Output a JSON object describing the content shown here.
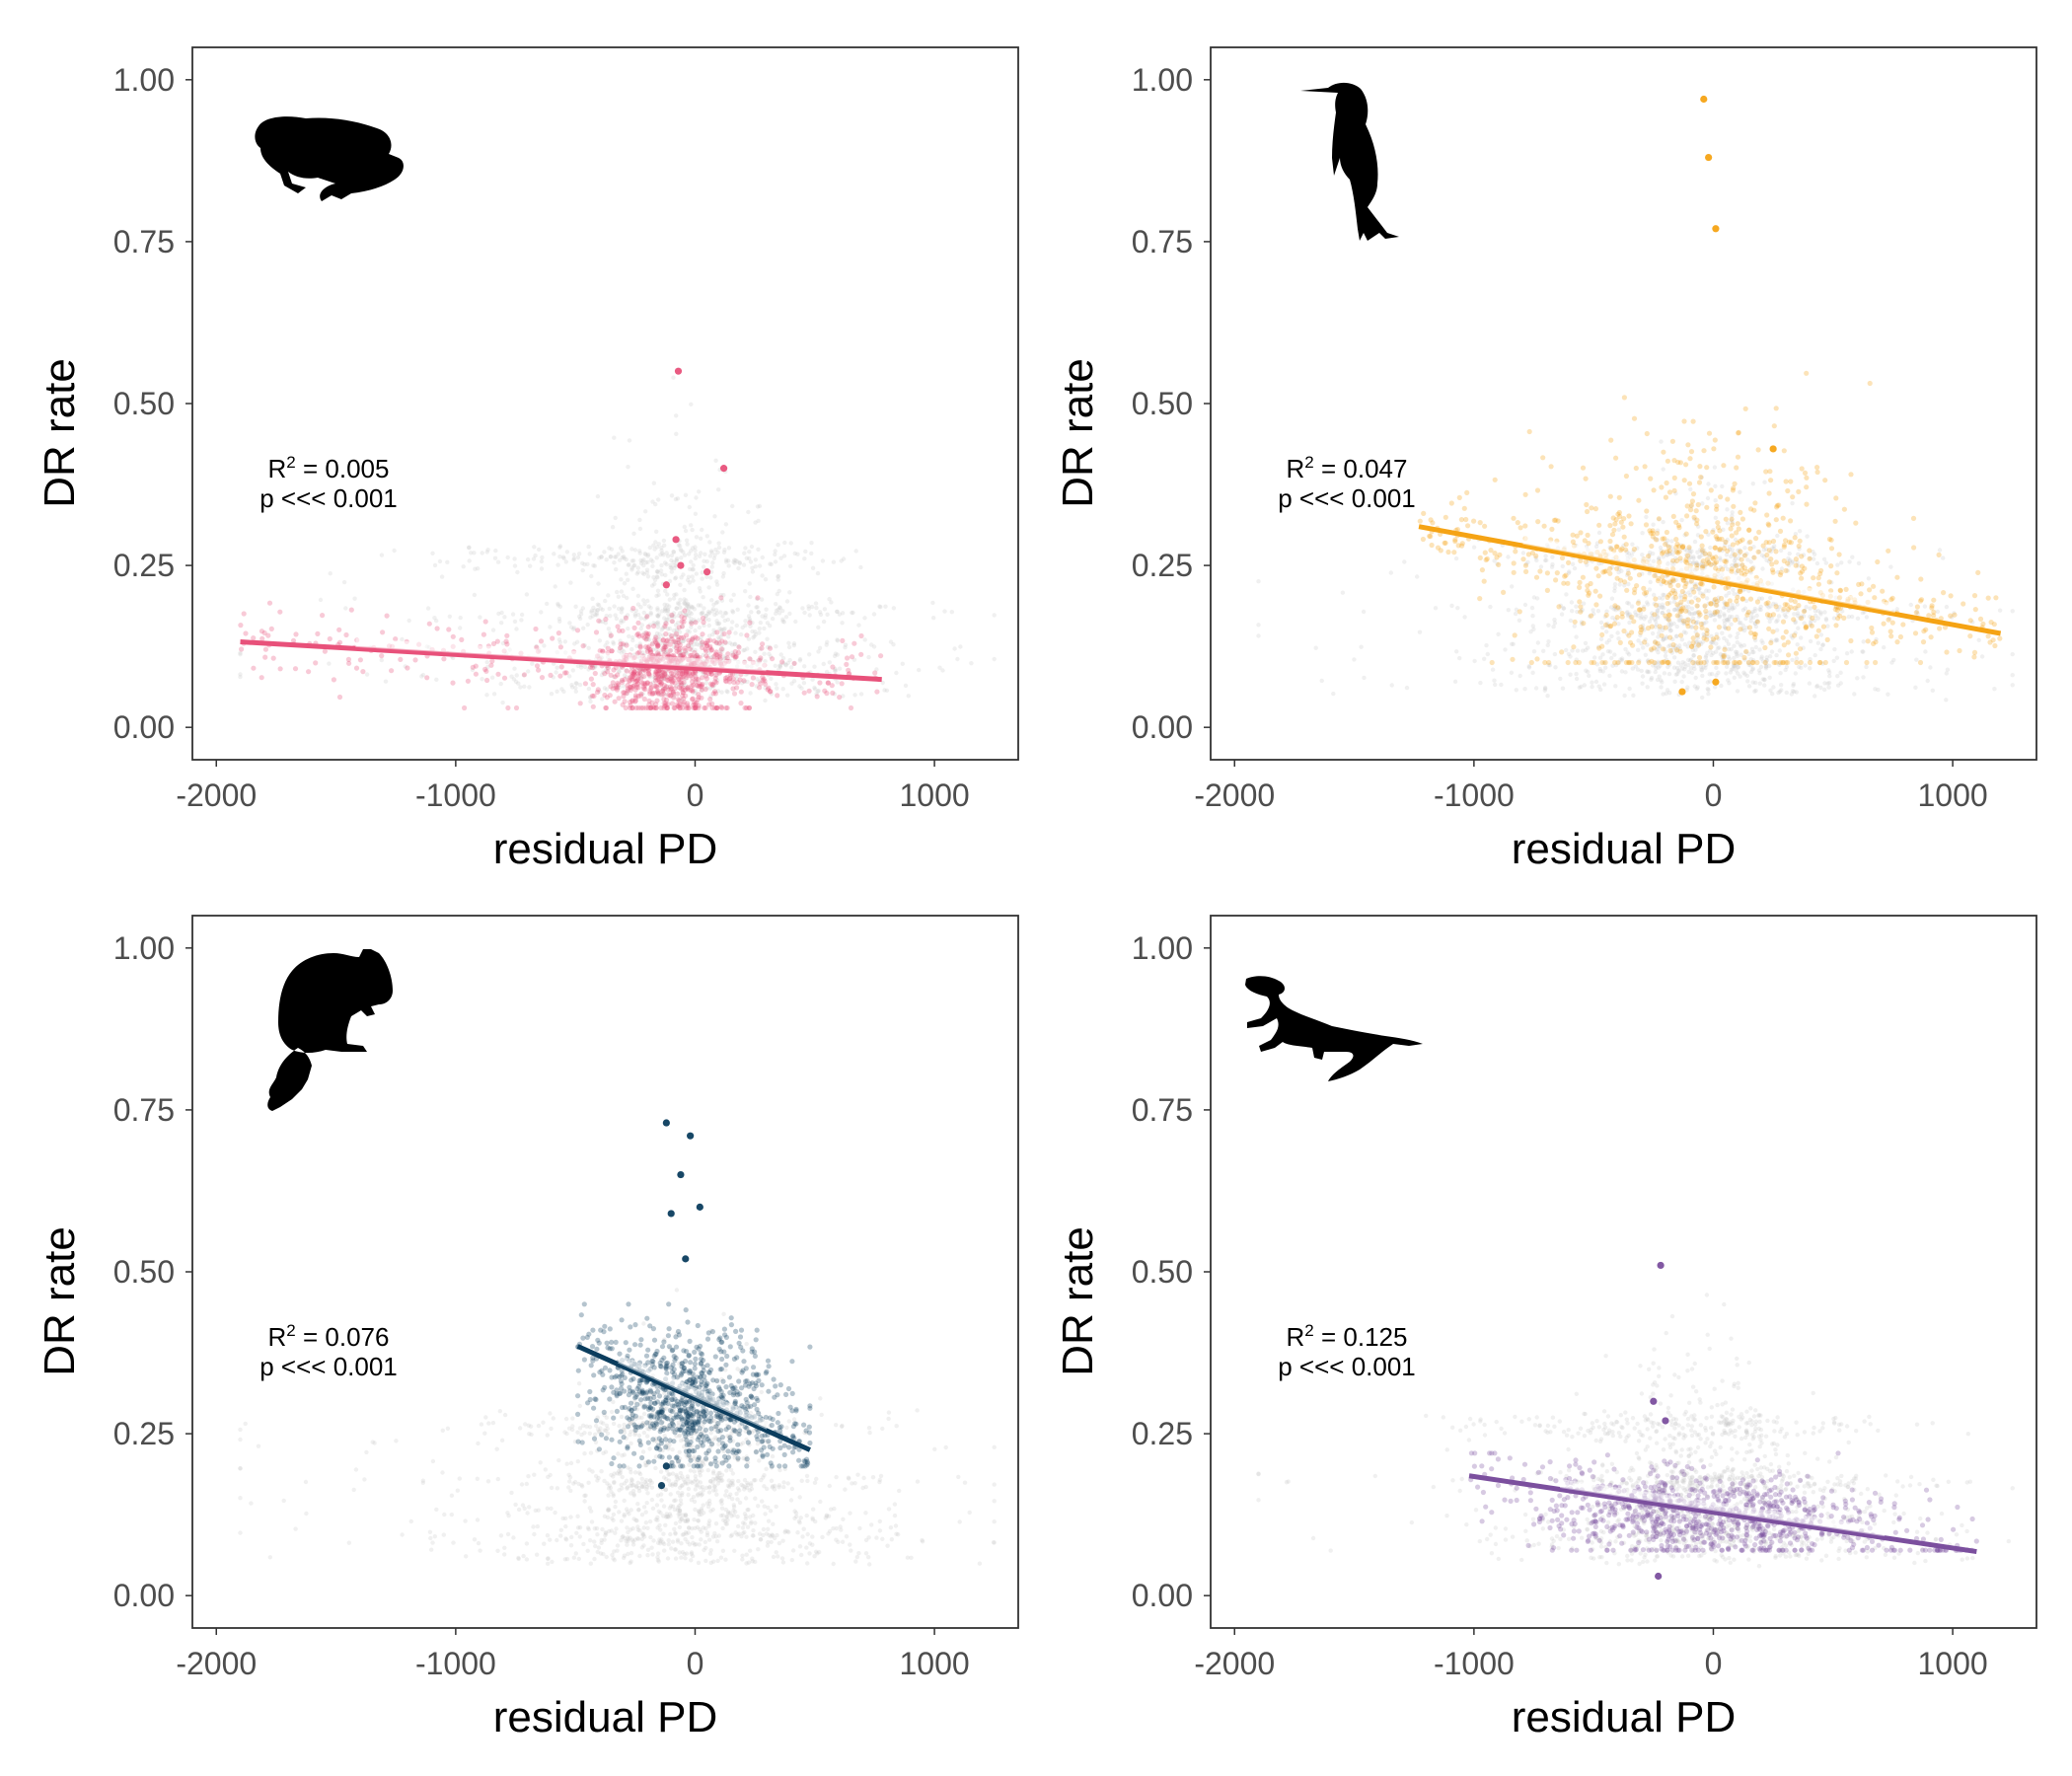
{
  "figure": {
    "background": "#ffffff"
  },
  "chart_data": [
    {
      "type": "scatter",
      "panel": "amphibians",
      "silhouette": "frog-icon",
      "xlabel": "residual PD",
      "ylabel": "DR rate",
      "xlim": [
        -2100,
        1350
      ],
      "ylim": [
        -0.05,
        1.05
      ],
      "xticks": [
        "-2000",
        "-1000",
        "0",
        "1000"
      ],
      "yticks": [
        "0.00",
        "0.25",
        "0.50",
        "0.75",
        "1.00"
      ],
      "grid": false,
      "color": "#e8517a",
      "background_color": "#c8c8c8",
      "r2_value": "0.005",
      "p_text": "p <<< 0.001",
      "fit_line": {
        "x": [
          -1900,
          780
        ],
        "y": [
          0.132,
          0.074
        ]
      },
      "cloud": {
        "x_center": -100,
        "x_spread": 150,
        "y_min": 0.03,
        "y_max": 0.2,
        "y_mode": 0.085
      },
      "outliers": [
        {
          "x": -70,
          "y": 0.55
        },
        {
          "x": 120,
          "y": 0.4
        },
        {
          "x": -80,
          "y": 0.29
        },
        {
          "x": -60,
          "y": 0.25
        },
        {
          "x": 50,
          "y": 0.24
        },
        {
          "x": -120,
          "y": 0.22
        }
      ]
    },
    {
      "type": "scatter",
      "panel": "birds",
      "silhouette": "bird-icon",
      "xlabel": "residual PD",
      "ylabel": "DR rate",
      "xlim": [
        -2100,
        1350
      ],
      "ylim": [
        -0.05,
        1.05
      ],
      "xticks": [
        "-2000",
        "-1000",
        "0",
        "1000"
      ],
      "yticks": [
        "0.00",
        "0.25",
        "0.50",
        "0.75",
        "1.00"
      ],
      "grid": false,
      "color": "#f5a314",
      "background_color": "#c8c8c8",
      "r2_value": "0.047",
      "p_text": "p <<< 0.001",
      "fit_line": {
        "x": [
          -1230,
          1200
        ],
        "y": [
          0.31,
          0.145
        ]
      },
      "cloud": {
        "x_center": -60,
        "x_spread": 350,
        "y_min": 0.1,
        "y_max": 0.55,
        "y_mode": 0.24
      },
      "outliers": [
        {
          "x": -40,
          "y": 0.97
        },
        {
          "x": -20,
          "y": 0.88
        },
        {
          "x": 10,
          "y": 0.77
        },
        {
          "x": 250,
          "y": 0.43
        },
        {
          "x": 10,
          "y": 0.07
        },
        {
          "x": -130,
          "y": 0.055
        }
      ]
    },
    {
      "type": "scatter",
      "panel": "mammals",
      "silhouette": "squirrel-icon",
      "xlabel": "residual PD",
      "ylabel": "DR rate",
      "xlim": [
        -2100,
        1350
      ],
      "ylim": [
        -0.05,
        1.05
      ],
      "xticks": [
        "-2000",
        "-1000",
        "0",
        "1000"
      ],
      "yticks": [
        "0.00",
        "0.25",
        "0.50",
        "0.75",
        "1.00"
      ],
      "grid": false,
      "color": "#0b3d5e",
      "background_color": "#c8c8c8",
      "r2_value": "0.076",
      "p_text": "p <<< 0.001",
      "fit_line": {
        "x": [
          -490,
          480
        ],
        "y": [
          0.385,
          0.225
        ]
      },
      "cloud": {
        "x_center": -30,
        "x_spread": 170,
        "y_min": 0.2,
        "y_max": 0.45,
        "y_mode": 0.3
      },
      "outliers": [
        {
          "x": -120,
          "y": 0.73
        },
        {
          "x": -20,
          "y": 0.71
        },
        {
          "x": 20,
          "y": 0.6
        },
        {
          "x": -40,
          "y": 0.52
        },
        {
          "x": -100,
          "y": 0.59
        },
        {
          "x": -120,
          "y": 0.2
        },
        {
          "x": -140,
          "y": 0.17
        },
        {
          "x": -60,
          "y": 0.65
        }
      ]
    },
    {
      "type": "scatter",
      "panel": "squamates",
      "silhouette": "lizard-icon",
      "xlabel": "residual PD",
      "ylabel": "DR rate",
      "xlim": [
        -2100,
        1350
      ],
      "ylim": [
        -0.05,
        1.05
      ],
      "xticks": [
        "-2000",
        "-1000",
        "0",
        "1000"
      ],
      "yticks": [
        "0.00",
        "0.25",
        "0.50",
        "0.75",
        "1.00"
      ],
      "grid": false,
      "color": "#7b4f9e",
      "background_color": "#c8c8c8",
      "r2_value": "0.125",
      "p_text": "p <<< 0.001",
      "fit_line": {
        "x": [
          -1020,
          1100
        ],
        "y": [
          0.185,
          0.068
        ]
      },
      "cloud": {
        "x_center": -50,
        "x_spread": 300,
        "y_min": 0.07,
        "y_max": 0.22,
        "y_mode": 0.12
      },
      "outliers": [
        {
          "x": -220,
          "y": 0.51
        },
        {
          "x": -250,
          "y": 0.3
        },
        {
          "x": -200,
          "y": 0.27
        },
        {
          "x": -230,
          "y": 0.03
        }
      ]
    }
  ]
}
